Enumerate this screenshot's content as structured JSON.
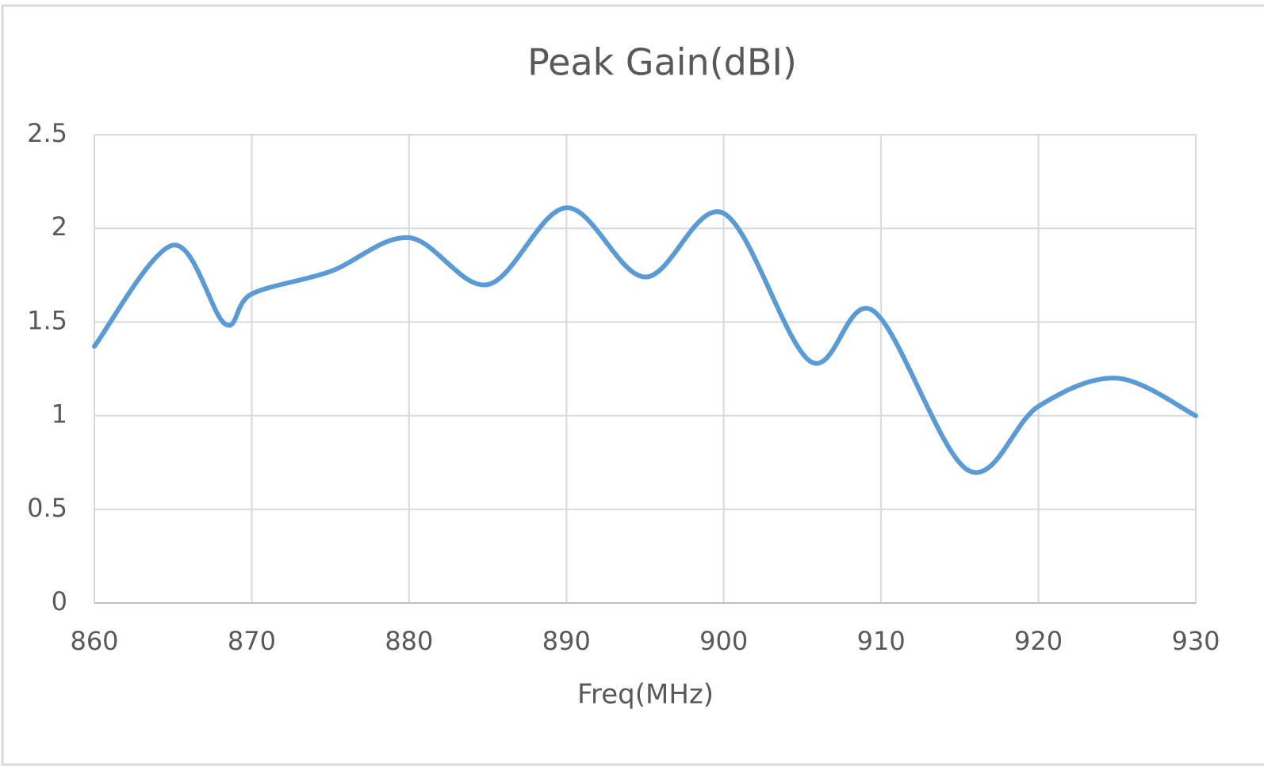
{
  "chart_data": {
    "type": "line",
    "title": "Peak Gain(dBI)",
    "x_label": "Freq(MHz)",
    "x": [
      860,
      865,
      868.3,
      870,
      875,
      880,
      885,
      890,
      895,
      900,
      905.5,
      909.5,
      915.5,
      920,
      925,
      930
    ],
    "series": [
      {
        "name": "Peak Gain(dBI)",
        "color": "#5b9bd5",
        "values": [
          1.37,
          1.91,
          1.49,
          1.65,
          1.77,
          1.95,
          1.7,
          2.11,
          1.74,
          2.08,
          1.29,
          1.56,
          0.71,
          1.05,
          1.2,
          1.0
        ]
      }
    ],
    "xlim": [
      860,
      930
    ],
    "xticks": [
      860,
      870,
      880,
      890,
      900,
      910,
      920,
      930
    ],
    "ylim": [
      0,
      2.5
    ],
    "yticks": [
      0,
      0.5,
      1,
      1.5,
      2,
      2.5
    ],
    "grid": true,
    "smooth": true
  }
}
